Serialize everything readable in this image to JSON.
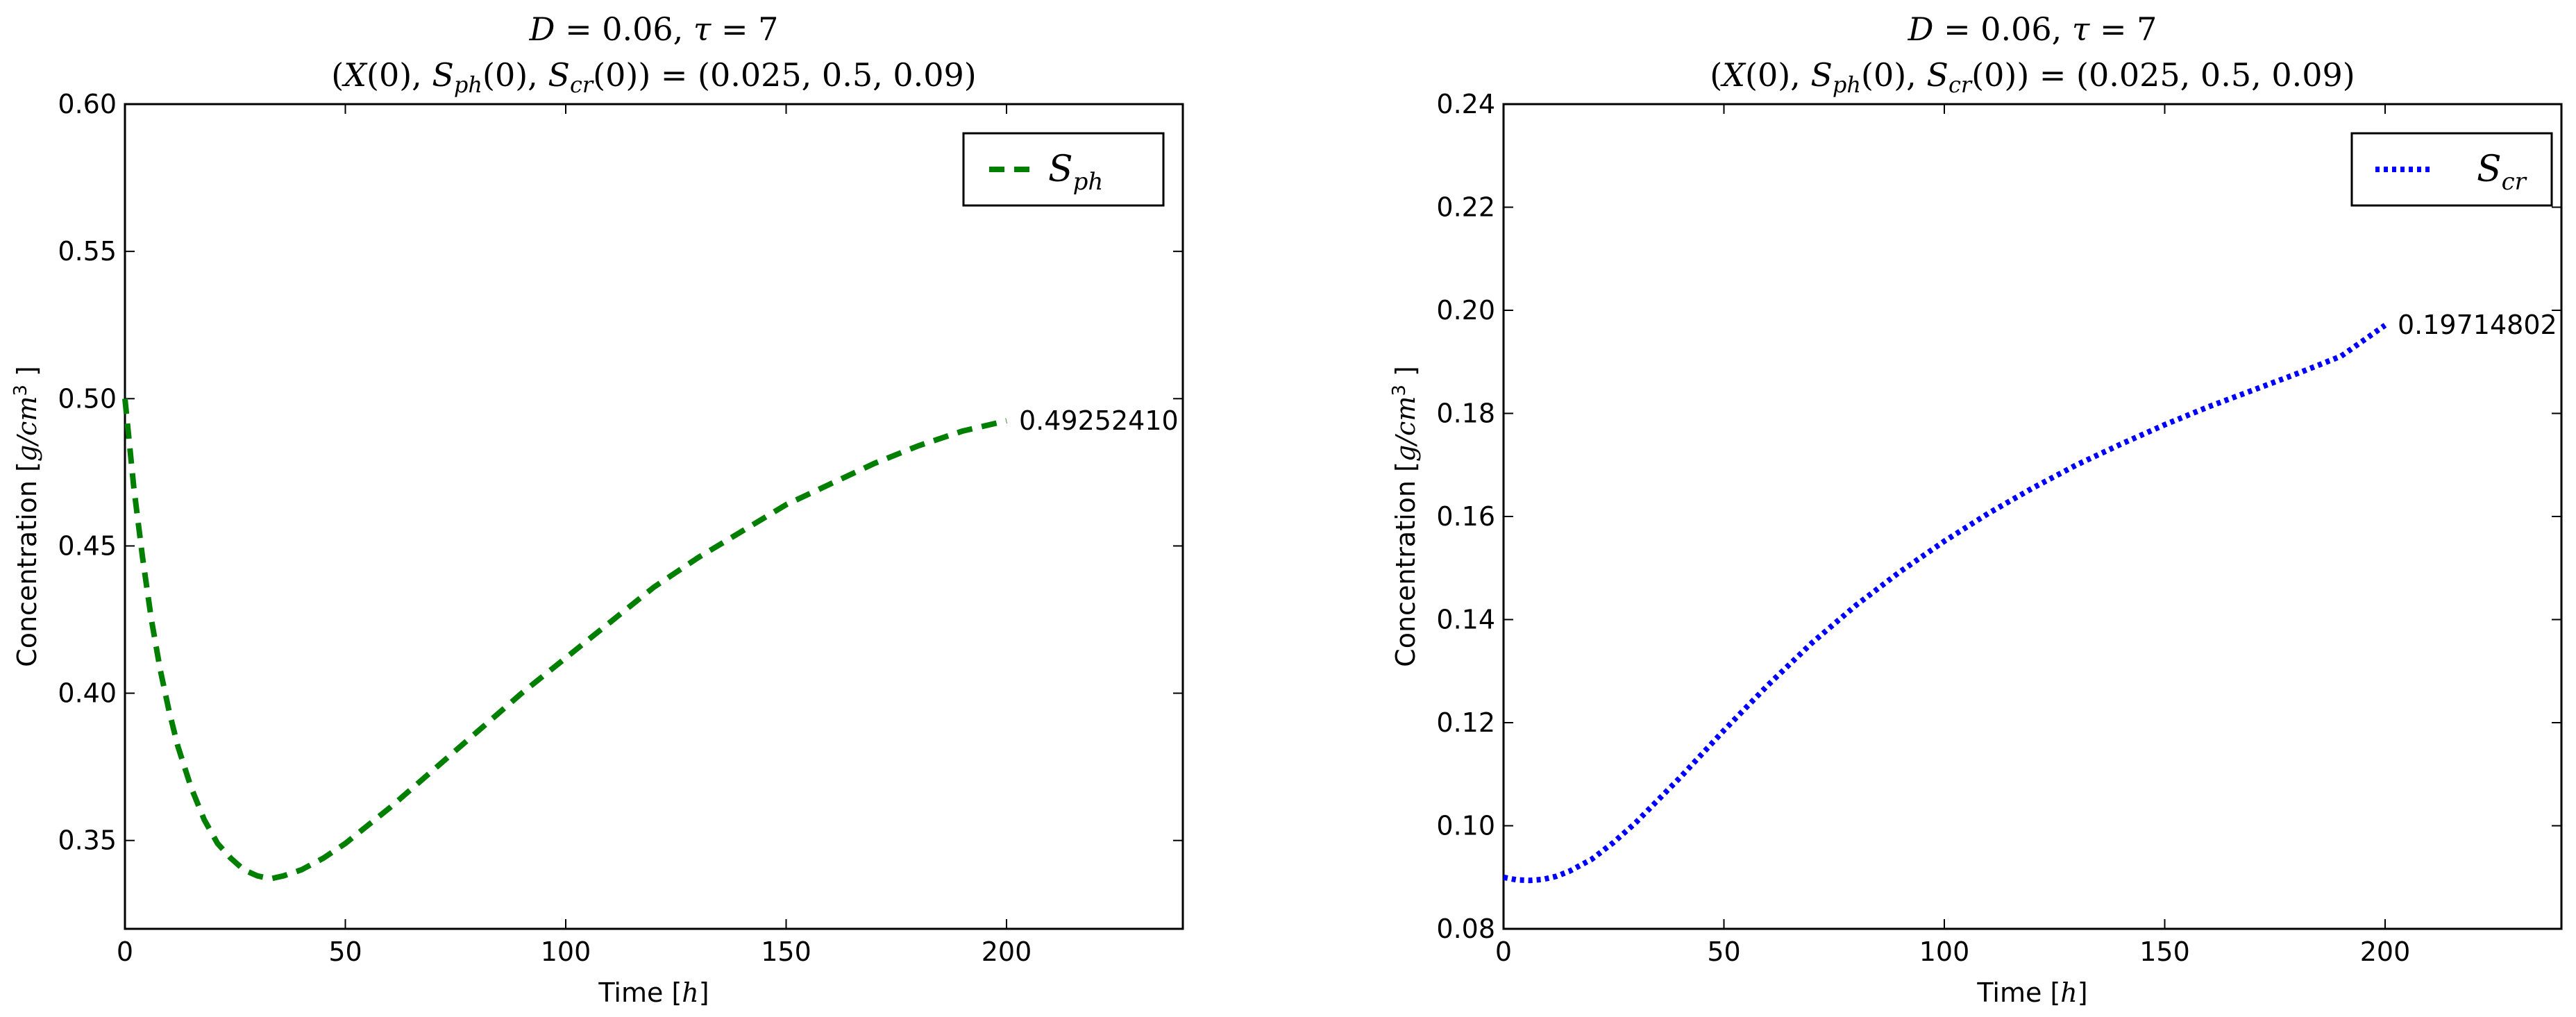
{
  "chart_data": [
    {
      "type": "line",
      "title_line1": "D = 0.06,   τ = 7",
      "title_line2": "(X(0), S_ph(0), S_cr(0)) = (0.025, 0.5, 0.09)",
      "xlabel": "Time [h]",
      "ylabel": "Concentration [g/cm³]",
      "xlim": [
        0,
        240
      ],
      "ylim": [
        0.32,
        0.6
      ],
      "xticks": [
        0,
        50,
        100,
        150,
        200
      ],
      "yticks": [
        0.35,
        0.4,
        0.45,
        0.5,
        0.55,
        0.6
      ],
      "ytick_decimals": 2,
      "legend_position": "top-right",
      "grid": false,
      "series": [
        {
          "name": "S_ph",
          "color": "#007f00",
          "style": "dashed",
          "x": [
            0,
            2,
            4,
            6,
            8,
            10,
            12,
            15,
            18,
            21,
            24,
            27,
            30,
            33,
            36,
            40,
            45,
            50,
            60,
            70,
            80,
            90,
            100,
            110,
            120,
            130,
            140,
            150,
            160,
            170,
            180,
            190,
            200
          ],
          "y": [
            0.5,
            0.47,
            0.446,
            0.425,
            0.408,
            0.394,
            0.382,
            0.368,
            0.357,
            0.349,
            0.344,
            0.34,
            0.338,
            0.337,
            0.338,
            0.34,
            0.344,
            0.349,
            0.361,
            0.374,
            0.387,
            0.4,
            0.412,
            0.424,
            0.436,
            0.446,
            0.455,
            0.464,
            0.471,
            0.478,
            0.484,
            0.489,
            0.4925
          ]
        }
      ],
      "end_label": "0.49252410",
      "end_point": [
        200,
        0.4925241
      ]
    },
    {
      "type": "line",
      "title_line1": "D = 0.06,   τ = 7",
      "title_line2": "(X(0), S_ph(0), S_cr(0)) = (0.025, 0.5, 0.09)",
      "xlabel": "Time [h]",
      "ylabel": "Concentration [g/cm³]",
      "xlim": [
        0,
        240
      ],
      "ylim": [
        0.08,
        0.24
      ],
      "xticks": [
        0,
        50,
        100,
        150,
        200
      ],
      "yticks": [
        0.08,
        0.1,
        0.12,
        0.14,
        0.16,
        0.18,
        0.2,
        0.22,
        0.24
      ],
      "ytick_decimals": 2,
      "legend_position": "top-right",
      "grid": false,
      "series": [
        {
          "name": "S_cr",
          "color": "#0000ff",
          "style": "dotted",
          "x": [
            0,
            3,
            6,
            9,
            12,
            15,
            20,
            25,
            30,
            40,
            50,
            60,
            70,
            80,
            90,
            100,
            110,
            120,
            130,
            140,
            150,
            160,
            170,
            180,
            190,
            200
          ],
          "y": [
            0.09,
            0.0895,
            0.0894,
            0.0896,
            0.0902,
            0.0912,
            0.0935,
            0.0968,
            0.1006,
            0.1093,
            0.1185,
            0.1273,
            0.1355,
            0.1428,
            0.1493,
            0.1552,
            0.1606,
            0.1655,
            0.17,
            0.174,
            0.1778,
            0.1813,
            0.1845,
            0.1877,
            0.1911,
            0.1971
          ]
        }
      ],
      "end_label": "0.19714802",
      "end_point": [
        200,
        0.19714802
      ]
    }
  ]
}
